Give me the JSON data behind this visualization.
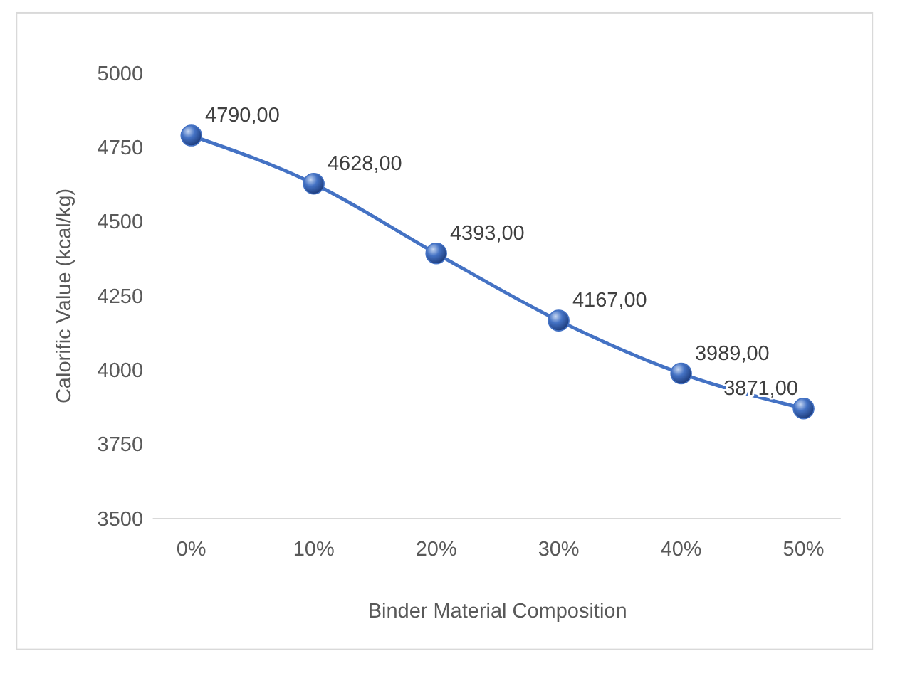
{
  "chart_data": {
    "type": "line",
    "xlabel": "Binder Material Composition",
    "ylabel": "Calorific Value (kcal/kg)",
    "categories": [
      "0%",
      "10%",
      "20%",
      "30%",
      "40%",
      "50%"
    ],
    "series": [
      {
        "color": "#4472c4",
        "values": [
          4790,
          4628,
          4393,
          4167,
          3989,
          3871
        ],
        "value_labels": [
          "4790,00",
          "4628,00",
          "4393,00",
          "4167,00",
          "3989,00",
          "3871,00"
        ]
      }
    ],
    "ylim": [
      3500,
      5000
    ],
    "yticks": [
      3500,
      3750,
      4000,
      4250,
      4500,
      4750,
      5000
    ],
    "grid": false,
    "marker": "circle",
    "line_style": "solid"
  }
}
